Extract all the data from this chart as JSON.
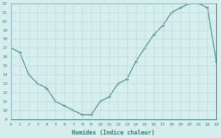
{
  "x_data": [
    0,
    1,
    2,
    3,
    4,
    5,
    6,
    7,
    8,
    9,
    10,
    11,
    12,
    13,
    14,
    15,
    16,
    17,
    18,
    19,
    20,
    21,
    22,
    23
  ],
  "y_data": [
    17,
    16.5,
    14,
    13,
    12.5,
    11,
    10.5,
    10,
    9.5,
    9.5,
    11,
    11.5,
    13,
    13.5,
    15.5,
    17,
    18.5,
    19.5,
    21,
    21.5,
    22,
    22,
    21.5,
    15.5
  ],
  "xlabel": "Humidex (Indice chaleur)",
  "xlim": [
    0,
    23
  ],
  "ylim": [
    9,
    22
  ],
  "yticks": [
    9,
    10,
    11,
    12,
    13,
    14,
    15,
    16,
    17,
    18,
    19,
    20,
    21,
    22
  ],
  "xticks": [
    0,
    1,
    2,
    3,
    4,
    5,
    6,
    7,
    8,
    9,
    10,
    11,
    12,
    13,
    14,
    15,
    16,
    17,
    18,
    19,
    20,
    21,
    22,
    23
  ],
  "line_color": "#2d7d74",
  "marker": "+",
  "bg_color": "#d6eeee",
  "grid_color": "#b8d8d8"
}
